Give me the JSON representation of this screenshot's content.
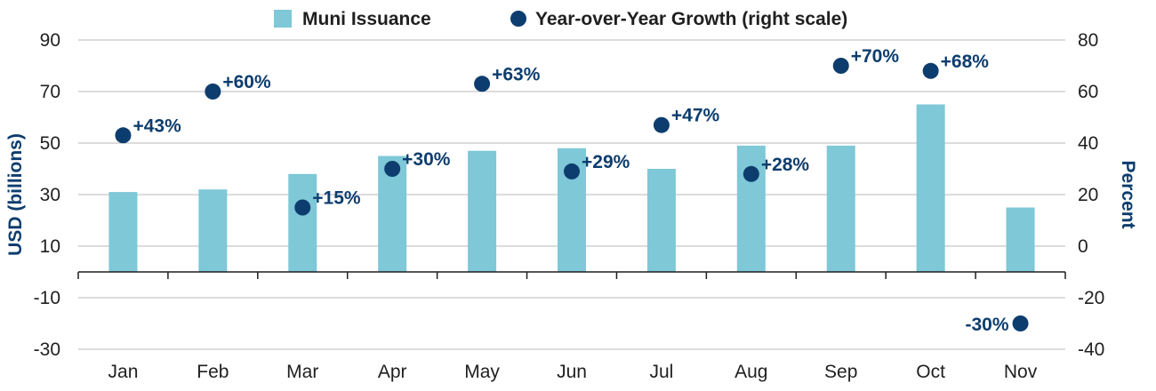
{
  "chart_data": {
    "type": "bar",
    "categories": [
      "Jan",
      "Feb",
      "Mar",
      "Apr",
      "May",
      "Jun",
      "Jul",
      "Aug",
      "Sep",
      "Oct",
      "Nov"
    ],
    "series": [
      {
        "name": "Muni Issuance",
        "type": "bar",
        "axis": "left",
        "color": "#7ec8d8",
        "values": [
          31,
          32,
          38,
          45,
          47,
          48,
          40,
          49,
          49,
          65,
          25
        ]
      },
      {
        "name": "Year-over-Year Growth (right scale)",
        "type": "scatter",
        "axis": "right",
        "color": "#0d3d6e",
        "values": [
          43,
          60,
          15,
          30,
          63,
          29,
          47,
          28,
          70,
          68,
          -30
        ],
        "labels": [
          "+43%",
          "+60%",
          "+15%",
          "+30%",
          "+63%",
          "+29%",
          "+47%",
          "+28%",
          "+70%",
          "+68%",
          "-30%"
        ]
      }
    ],
    "ylabel": "USD (billions)",
    "y2label": "Percent",
    "ylim": [
      -30,
      90
    ],
    "y2lim": [
      -40,
      80
    ],
    "yticks": [
      -30,
      -10,
      10,
      30,
      50,
      70,
      90
    ],
    "y2ticks": [
      -40,
      -20,
      0,
      20,
      40,
      60,
      80
    ],
    "grid": true,
    "legend": "top-center"
  }
}
